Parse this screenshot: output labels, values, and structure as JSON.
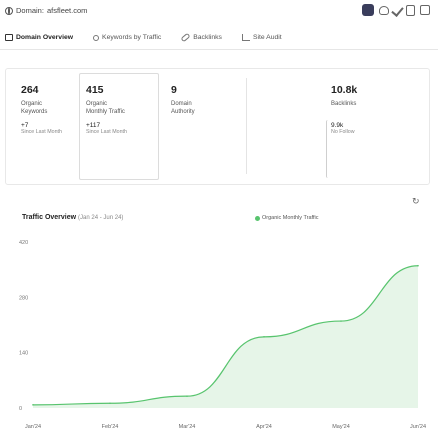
{
  "header": {
    "domain_label": "Domain:",
    "domain_value": "afsfleet.com"
  },
  "tabs": [
    {
      "label": "Domain Overview",
      "icon": "overview-icon",
      "active": true
    },
    {
      "label": "Keywords by Traffic",
      "icon": "key-icon",
      "active": false
    },
    {
      "label": "Backlinks",
      "icon": "link-icon",
      "active": false
    },
    {
      "label": "Site Audit",
      "icon": "audit-icon",
      "active": false
    }
  ],
  "stats": {
    "organic_keywords": {
      "value": "264",
      "label": "Organic\nKeywords",
      "sub_value": "+7",
      "sub_label": "Since Last Month"
    },
    "monthly_traffic": {
      "value": "415",
      "label": "Organic\nMonthly Traffic",
      "sub_value": "+117",
      "sub_label": "Since Last Month"
    },
    "domain_authority": {
      "value": "9",
      "label": "Domain\nAuthority"
    },
    "backlinks": {
      "value": "10.8k",
      "label": "Backlinks",
      "sub_value": "9.9k",
      "sub_label": "No Follow"
    }
  },
  "chart_section": {
    "title": "Traffic Overview",
    "range": "(Jan 24 - Jun 24)",
    "legend": "Organic Monthly Traffic",
    "line_color": "#58c46e",
    "fill_color": "#e6f5e8"
  },
  "chart_data": {
    "type": "area",
    "title": "Traffic Overview",
    "subtitle": "(Jan 24 - Jun 24)",
    "categories": [
      "Jan'24",
      "Feb'24",
      "Mar'24",
      "Apr'24",
      "May'24",
      "Jun'24"
    ],
    "series": [
      {
        "name": "Organic Monthly Traffic",
        "values": [
          8,
          12,
          30,
          180,
          220,
          360
        ]
      }
    ],
    "y_ticks": [
      0,
      140,
      280,
      420
    ],
    "ylim": [
      0,
      420
    ],
    "legend_position": "top-right",
    "grid": false
  }
}
